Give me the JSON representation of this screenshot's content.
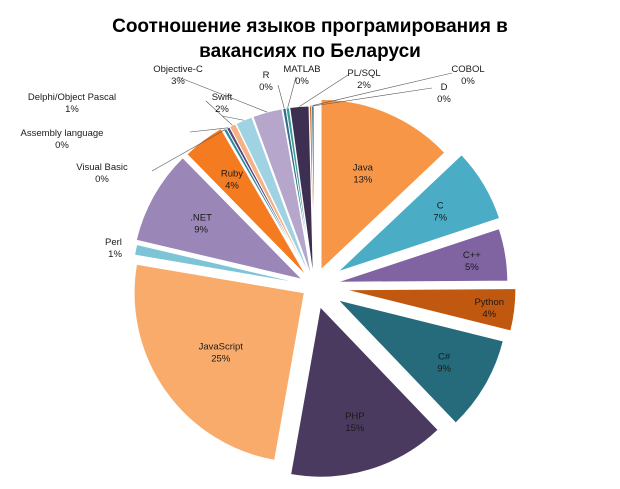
{
  "chart_data": {
    "type": "pie",
    "title": "Соотношение языков програмирования в вакансиях по Беларуси",
    "exploded": true,
    "slices": [
      {
        "label": "Java",
        "display": "13%",
        "value": 13,
        "color": "#f79646",
        "labelPos": "inside"
      },
      {
        "label": "C",
        "display": "7%",
        "value": 7,
        "color": "#4bacc6",
        "labelPos": "inside"
      },
      {
        "label": "C++",
        "display": "5%",
        "value": 5,
        "color": "#8064a2",
        "labelPos": "inside"
      },
      {
        "label": "Python",
        "display": "4%",
        "value": 4,
        "color": "#c0580f",
        "labelPos": "inside"
      },
      {
        "label": "C#",
        "display": "9%",
        "value": 9,
        "color": "#256b7b",
        "labelPos": "inside"
      },
      {
        "label": "PHP",
        "display": "15%",
        "value": 15,
        "color": "#4a3a5f",
        "labelPos": "inside"
      },
      {
        "label": "JavaScript",
        "display": "25%",
        "value": 25,
        "color": "#f9ab6b",
        "labelPos": "inside"
      },
      {
        "label": "Perl",
        "display": "1%",
        "value": 1,
        "color": "#7ec4d7",
        "labelPos": "outside"
      },
      {
        "label": ".NET",
        "display": "9%",
        "value": 9,
        "color": "#9b86b8",
        "labelPos": "inside"
      },
      {
        "label": "Ruby",
        "display": "4%",
        "value": 4,
        "color": "#f47b20",
        "labelPos": "inside"
      },
      {
        "label": "Visual Basic",
        "display": "0%",
        "value": 0.3,
        "color": "#2d8aa0",
        "labelPos": "callout"
      },
      {
        "label": "Assembly language",
        "display": "0%",
        "value": 0.3,
        "color": "#5a4577",
        "labelPos": "callout"
      },
      {
        "label": "Delphi/Object Pascal",
        "display": "1%",
        "value": 0.6,
        "color": "#f6b184",
        "labelPos": "callout"
      },
      {
        "label": "Swift",
        "display": "2%",
        "value": 1.6,
        "color": "#9fd3e4",
        "labelPos": "callout"
      },
      {
        "label": "Objective-C",
        "display": "3%",
        "value": 2.8,
        "color": "#b7a6cc",
        "labelPos": "callout"
      },
      {
        "label": "R",
        "display": "0%",
        "value": 0.3,
        "color": "#2f6f86",
        "labelPos": "callout"
      },
      {
        "label": "MATLAB",
        "display": "0%",
        "value": 0.3,
        "color": "#3a9a9a",
        "labelPos": "callout"
      },
      {
        "label": "PL/SQL",
        "display": "2%",
        "value": 1.8,
        "color": "#3d2f52",
        "labelPos": "callout"
      },
      {
        "label": "COBOL",
        "display": "0%",
        "value": 0.2,
        "color": "#cf5f16",
        "labelPos": "callout"
      },
      {
        "label": "D",
        "display": "0%",
        "value": 0.2,
        "color": "#1f5868",
        "labelPos": "callout"
      }
    ]
  }
}
